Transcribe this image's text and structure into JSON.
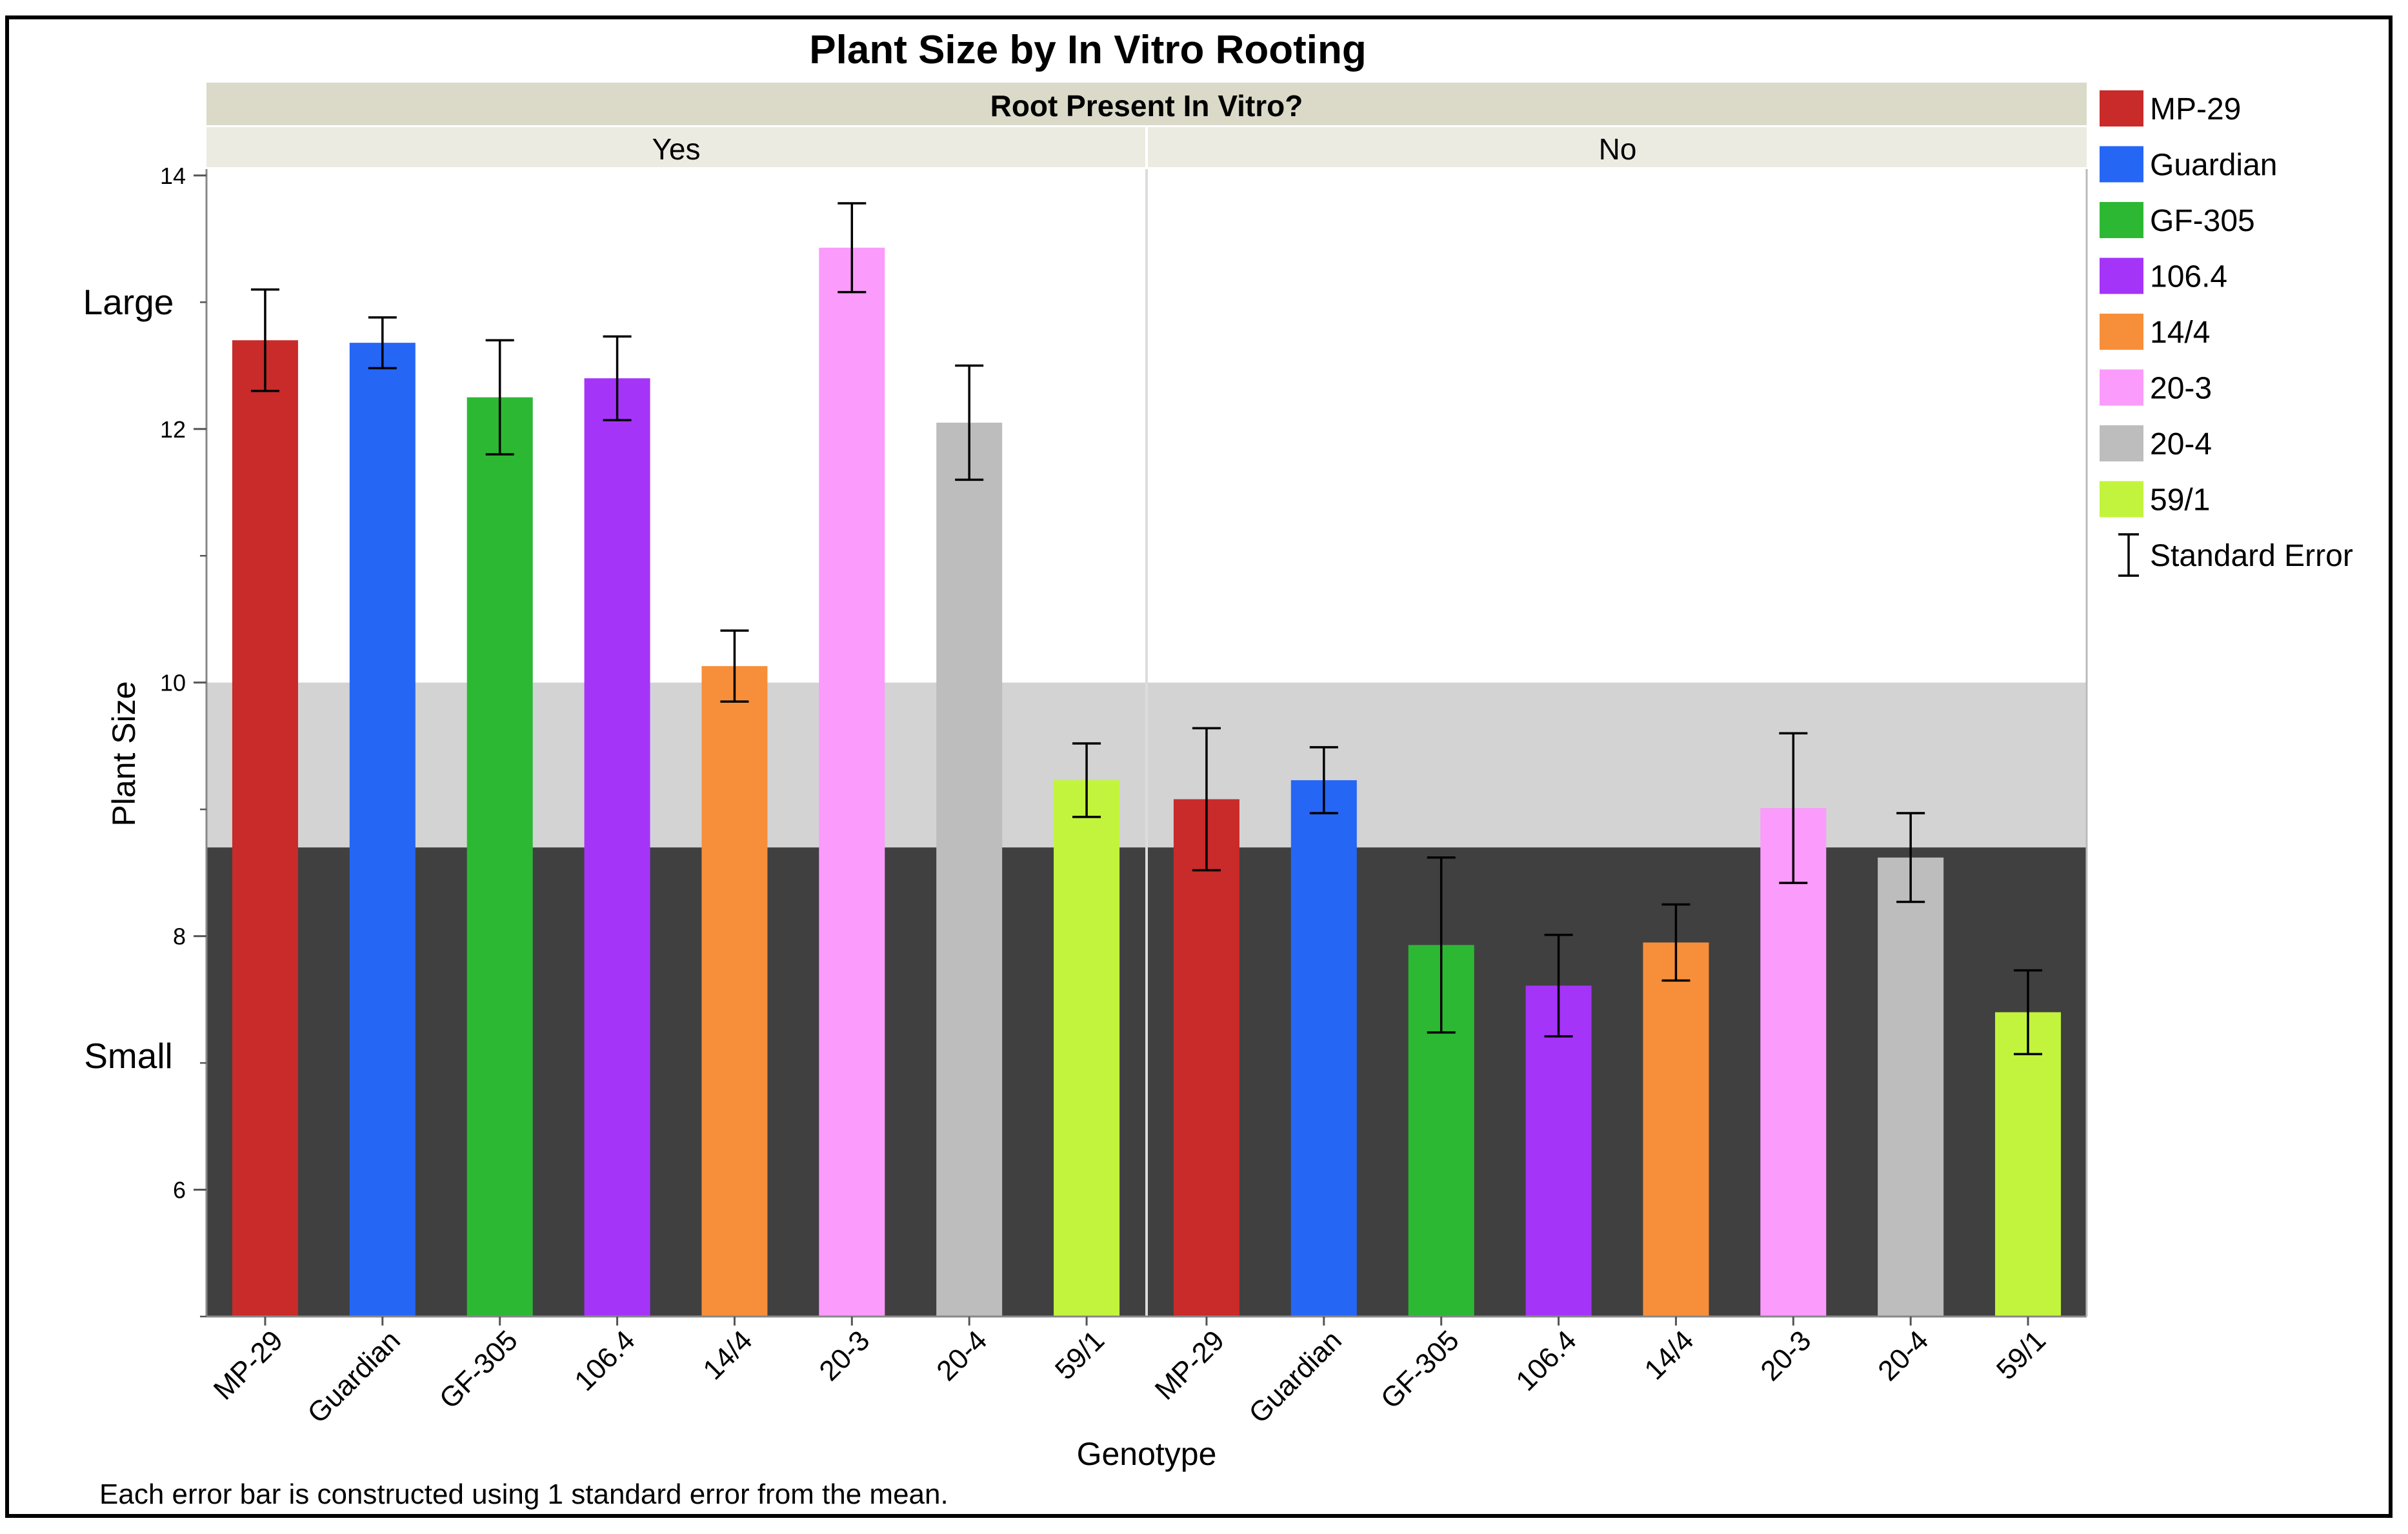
{
  "chart_data": {
    "type": "bar",
    "title": "Plant Size by In Vitro Rooting",
    "facet_title": "Root Present In Vitro?",
    "facets": [
      "Yes",
      "No"
    ],
    "categories": [
      "MP-29",
      "Guardian",
      "GF-305",
      "106.4",
      "14/4",
      "20-3",
      "20-4",
      "59/1"
    ],
    "xlabel": "Genotype",
    "ylabel": "Plant Size",
    "ylim": [
      5,
      14.05
    ],
    "yticks": [
      6,
      8,
      10,
      12,
      14
    ],
    "ytick_labels": [
      "6",
      "8",
      "10",
      "12",
      "14"
    ],
    "annotations": {
      "large": "Large",
      "small": "Small"
    },
    "reference_bands": [
      {
        "from": 5,
        "to": 8.7,
        "color": "#404040"
      },
      {
        "from": 8.7,
        "to": 10,
        "color": "#d3d3d3"
      }
    ],
    "series": [
      {
        "name": "Yes",
        "values": [
          12.7,
          12.68,
          12.25,
          12.4,
          10.13,
          13.43,
          12.05,
          9.23
        ],
        "errors": [
          0.4,
          0.2,
          0.45,
          0.33,
          0.28,
          0.35,
          0.45,
          0.29
        ]
      },
      {
        "name": "No",
        "values": [
          9.08,
          9.23,
          7.93,
          7.61,
          7.95,
          9.01,
          8.62,
          7.4
        ],
        "errors": [
          0.56,
          0.26,
          0.69,
          0.4,
          0.3,
          0.59,
          0.35,
          0.33
        ]
      }
    ],
    "colors": [
      "#c92a2a",
      "#2566f5",
      "#2db834",
      "#a534f9",
      "#f78f3a",
      "#fb9bfb",
      "#bdbdbd",
      "#c3f43d"
    ],
    "legend": {
      "position": "right",
      "entries": [
        "MP-29",
        "Guardian",
        "GF-305",
        "106.4",
        "14/4",
        "20-3",
        "20-4",
        "59/1"
      ],
      "error_label": "Standard Error"
    },
    "footnote": "Each error bar is constructed using 1 standard error from the mean."
  }
}
